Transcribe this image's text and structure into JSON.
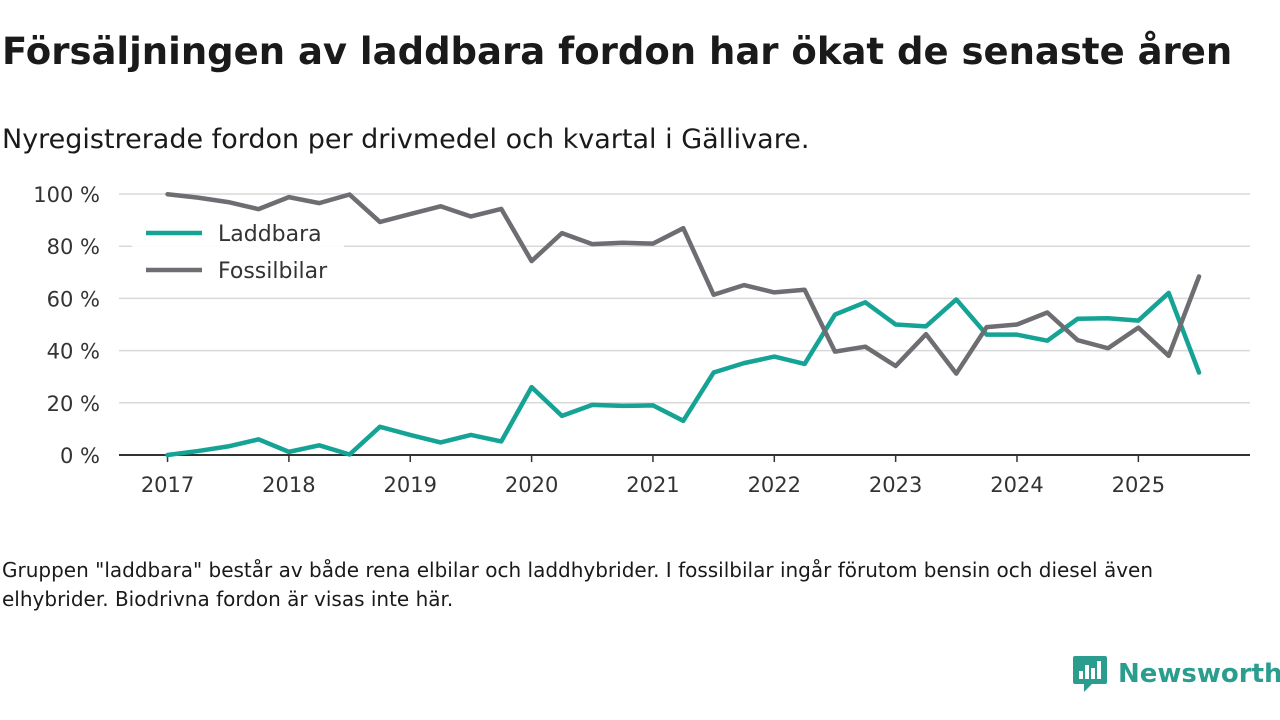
{
  "header": {
    "title": "Försäljningen av laddbara fordon har ökat de senaste åren",
    "subtitle": "Nyregistrerade fordon per drivmedel och kvartal i Gällivare."
  },
  "footer": {
    "note": "Gruppen \"laddbara\" består av både rena elbilar och laddhybrider. I fossilbilar ingår förutom bensin och diesel även elhybrider. Biodrivna fordon är visas inte här.",
    "brand": "Newsworthy"
  },
  "colors": {
    "laddbara": "#14a394",
    "fossil": "#6e6d72",
    "grid": "#d9d9d9",
    "axis": "#333333",
    "brand": "#2a9d8f"
  },
  "chart_data": {
    "type": "line",
    "title": "Försäljningen av laddbara fordon har ökat de senaste åren",
    "subtitle": "Nyregistrerade fordon per drivmedel och kvartal i Gällivare.",
    "xlabel": "",
    "ylabel": "",
    "x_start": 2017.0,
    "x_step": 0.25,
    "xlim": [
      2016.6,
      2025.92
    ],
    "ylim": [
      0,
      100
    ],
    "yticks": [
      0,
      20,
      40,
      60,
      80,
      100
    ],
    "ytick_labels": [
      "0 %",
      "20 %",
      "40 %",
      "60 %",
      "80 %",
      "100 %"
    ],
    "xticks": [
      2017,
      2018,
      2019,
      2020,
      2021,
      2022,
      2023,
      2024,
      2025
    ],
    "xtick_labels": [
      "2017",
      "2018",
      "2019",
      "2020",
      "2021",
      "2022",
      "2023",
      "2024",
      "2025"
    ],
    "grid": true,
    "legend_position": "top-left",
    "series": [
      {
        "name": "Laddbara",
        "color": "#14a394",
        "values": [
          0,
          1.5,
          3.3,
          6.0,
          1.2,
          3.7,
          0.2,
          10.8,
          7.7,
          4.8,
          7.7,
          5.2,
          26.0,
          15.0,
          19.2,
          18.8,
          19.0,
          13.1,
          31.6,
          35.2,
          37.7,
          34.9,
          53.8,
          58.5,
          50.0,
          49.3,
          59.6,
          46.1,
          46.1,
          43.8,
          52.2,
          52.4,
          51.5,
          62.1,
          31.6
        ]
      },
      {
        "name": "Fossilbilar",
        "color": "#6e6d72",
        "values": [
          99.9,
          98.6,
          96.9,
          94.2,
          98.8,
          96.5,
          99.8,
          89.3,
          92.3,
          95.3,
          91.4,
          94.3,
          74.3,
          85.0,
          80.8,
          81.3,
          81.0,
          86.9,
          61.4,
          65.1,
          62.3,
          63.3,
          39.6,
          41.5,
          34.1,
          46.3,
          31.2,
          49.0,
          50.0,
          54.6,
          44.0,
          40.9,
          48.8,
          38.0,
          68.4
        ]
      }
    ]
  }
}
